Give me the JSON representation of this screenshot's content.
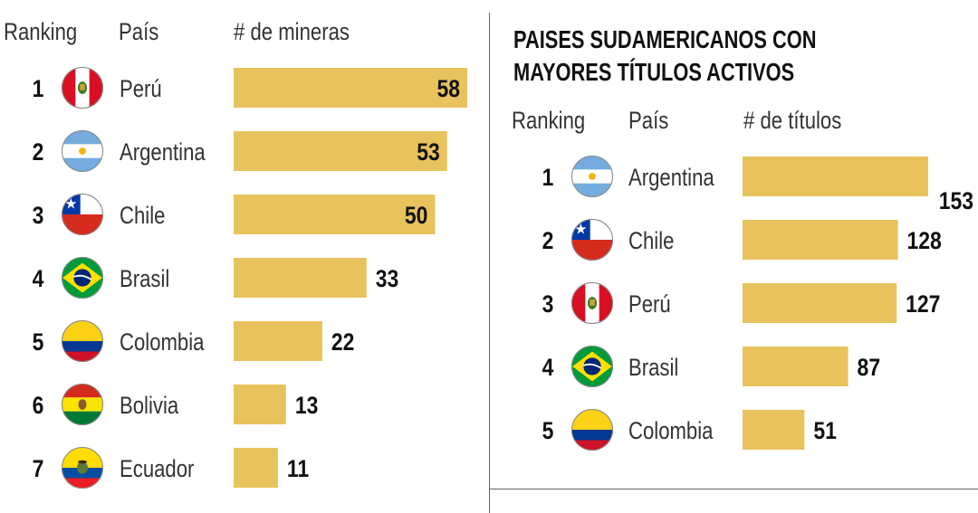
{
  "left": {
    "headers": {
      "ranking": "Ranking",
      "pais": "País",
      "metric": "# de mineras"
    }
  },
  "right": {
    "title_line1": "PAISES SUDAMERICANOS CON",
    "title_line2": "MAYORES TÍTULOS ACTIVOS",
    "headers": {
      "ranking": "Ranking",
      "pais": "País",
      "metric": "# de títulos"
    }
  },
  "colors": {
    "bar": "#E8C25C",
    "divider": "#666666"
  },
  "chart_data": [
    {
      "type": "bar",
      "orientation": "horizontal",
      "title": "",
      "xlabel": "# de mineras",
      "ylabel": "País",
      "xlim": [
        0,
        58
      ],
      "rows": [
        {
          "rank": "1",
          "country": "Perú",
          "value": 58,
          "flag": "peru-flag-icon"
        },
        {
          "rank": "2",
          "country": "Argentina",
          "value": 53,
          "flag": "argentina-flag-icon"
        },
        {
          "rank": "3",
          "country": "Chile",
          "value": 50,
          "flag": "chile-flag-icon"
        },
        {
          "rank": "4",
          "country": "Brasil",
          "value": 33,
          "flag": "brazil-flag-icon"
        },
        {
          "rank": "5",
          "country": "Colombia",
          "value": 22,
          "flag": "colombia-flag-icon"
        },
        {
          "rank": "6",
          "country": "Bolivia",
          "value": 13,
          "flag": "bolivia-flag-icon"
        },
        {
          "rank": "7",
          "country": "Ecuador",
          "value": 11,
          "flag": "ecuador-flag-icon"
        }
      ]
    },
    {
      "type": "bar",
      "orientation": "horizontal",
      "title": "PAISES SUDAMERICANOS CON MAYORES TÍTULOS ACTIVOS",
      "xlabel": "# de títulos",
      "ylabel": "País",
      "xlim": [
        0,
        153
      ],
      "rows": [
        {
          "rank": "1",
          "country": "Argentina",
          "value": 153,
          "flag": "argentina-flag-icon"
        },
        {
          "rank": "2",
          "country": "Chile",
          "value": 128,
          "flag": "chile-flag-icon"
        },
        {
          "rank": "3",
          "country": "Perú",
          "value": 127,
          "flag": "peru-flag-icon"
        },
        {
          "rank": "4",
          "country": "Brasil",
          "value": 87,
          "flag": "brazil-flag-icon"
        },
        {
          "rank": "5",
          "country": "Colombia",
          "value": 51,
          "flag": "colombia-flag-icon"
        }
      ]
    }
  ]
}
